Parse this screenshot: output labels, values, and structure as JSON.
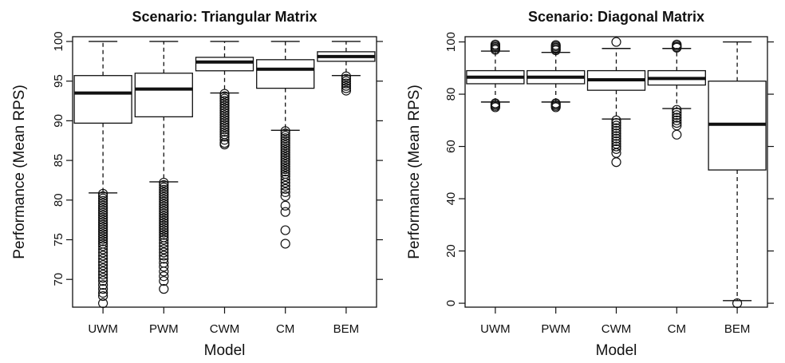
{
  "chart_data": [
    {
      "type": "boxplot",
      "title": "Scenario: Triangular Matrix",
      "xlabel": "Model",
      "ylabel": "Performance (Mean RPS)",
      "ylim": [
        66.5,
        100.6
      ],
      "yticks": [
        70,
        75,
        80,
        85,
        90,
        95,
        100
      ],
      "right_ticks": true,
      "categories": [
        "UWM",
        "PWM",
        "CWM",
        "CM",
        "BEM"
      ],
      "boxes": [
        {
          "name": "UWM",
          "whisker_low": 80.9,
          "q1": 89.7,
          "median": 93.5,
          "q3": 95.7,
          "whisker_high": 100.0,
          "outliers": [
            80.8,
            80.5,
            80.2,
            79.9,
            79.6,
            79.3,
            79.0,
            78.7,
            78.4,
            78.1,
            77.8,
            77.5,
            77.2,
            76.9,
            76.6,
            76.3,
            76.0,
            75.7,
            75.4,
            75.1,
            74.8,
            74.5,
            74.2,
            73.8,
            73.4,
            73.0,
            72.6,
            72.2,
            71.8,
            71.4,
            71.0,
            70.6,
            70.2,
            69.8,
            69.3,
            68.8,
            68.3,
            67.9,
            67.0
          ]
        },
        {
          "name": "PWM",
          "whisker_low": 82.3,
          "q1": 90.5,
          "median": 94.0,
          "q3": 96.0,
          "whisker_high": 100.0,
          "outliers": [
            82.2,
            81.9,
            81.6,
            81.3,
            81.0,
            80.7,
            80.4,
            80.1,
            79.8,
            79.5,
            79.2,
            78.9,
            78.6,
            78.3,
            78.0,
            77.7,
            77.4,
            77.1,
            76.8,
            76.5,
            76.2,
            75.9,
            75.6,
            75.3,
            75.0,
            74.6,
            74.2,
            73.8,
            73.4,
            73.0,
            72.6,
            72.1,
            71.6,
            71.0,
            70.4,
            69.8,
            68.8
          ]
        },
        {
          "name": "CWM",
          "whisker_low": 93.5,
          "q1": 96.3,
          "median": 97.4,
          "q3": 98.0,
          "whisker_high": 100.0,
          "outliers": [
            93.4,
            93.1,
            92.8,
            92.5,
            92.2,
            91.9,
            91.6,
            91.3,
            91.0,
            90.7,
            90.4,
            90.1,
            89.8,
            89.5,
            89.2,
            88.9,
            88.6,
            88.3,
            88.0,
            87.6,
            87.2,
            87.0
          ]
        },
        {
          "name": "CM",
          "whisker_low": 88.8,
          "q1": 94.1,
          "median": 96.5,
          "q3": 97.7,
          "whisker_high": 100.0,
          "outliers": [
            88.7,
            88.4,
            88.1,
            87.8,
            87.5,
            87.2,
            86.9,
            86.6,
            86.3,
            86.0,
            85.7,
            85.4,
            85.1,
            84.8,
            84.5,
            84.2,
            83.9,
            83.6,
            83.3,
            83.0,
            82.6,
            82.2,
            81.8,
            81.4,
            81.0,
            80.5,
            79.3,
            78.5,
            76.2,
            74.5
          ]
        },
        {
          "name": "BEM",
          "whisker_low": 95.7,
          "q1": 97.5,
          "median": 98.1,
          "q3": 98.7,
          "whisker_high": 100.0,
          "outliers": [
            95.6,
            95.3,
            95.0,
            94.7,
            94.4,
            94.1,
            93.8
          ]
        }
      ]
    },
    {
      "type": "boxplot",
      "title": "Scenario: Diagonal Matrix",
      "xlabel": "Model",
      "ylabel": "Performance (Mean RPS)",
      "ylim": [
        -1.5,
        102.0
      ],
      "yticks": [
        0,
        20,
        40,
        60,
        80,
        100
      ],
      "right_ticks": true,
      "categories": [
        "UWM",
        "PWM",
        "CWM",
        "CM",
        "BEM"
      ],
      "boxes": [
        {
          "name": "UWM",
          "whisker_low": 77.0,
          "q1": 84.0,
          "median": 86.5,
          "q3": 89.0,
          "whisker_high": 96.5,
          "outliers": [
            99.0,
            98.5,
            98.0,
            97.5,
            97.0,
            76.5,
            76.0,
            75.5,
            75.0
          ]
        },
        {
          "name": "PWM",
          "whisker_low": 77.0,
          "q1": 84.0,
          "median": 86.5,
          "q3": 89.0,
          "whisker_high": 96.0,
          "outliers": [
            98.8,
            98.3,
            97.8,
            97.3,
            96.8,
            76.5,
            76.0,
            75.5,
            75.0
          ]
        },
        {
          "name": "CWM",
          "whisker_low": 70.5,
          "q1": 81.5,
          "median": 85.5,
          "q3": 89.0,
          "whisker_high": 97.5,
          "outliers": [
            100.0,
            70.0,
            69.0,
            68.0,
            67.0,
            66.0,
            65.0,
            64.0,
            63.0,
            62.0,
            61.0,
            60.0,
            59.0,
            57.5,
            54.0
          ]
        },
        {
          "name": "CM",
          "whisker_low": 74.5,
          "q1": 83.5,
          "median": 86.0,
          "q3": 89.0,
          "whisker_high": 97.5,
          "outliers": [
            99.0,
            98.5,
            98.0,
            97.8,
            74.0,
            73.0,
            72.0,
            71.0,
            70.0,
            69.0,
            68.0,
            64.5
          ]
        },
        {
          "name": "BEM",
          "whisker_low": 1.0,
          "q1": 51.0,
          "median": 68.5,
          "q3": 85.0,
          "whisker_high": 100.0,
          "outliers": [
            0.0
          ]
        }
      ]
    }
  ]
}
